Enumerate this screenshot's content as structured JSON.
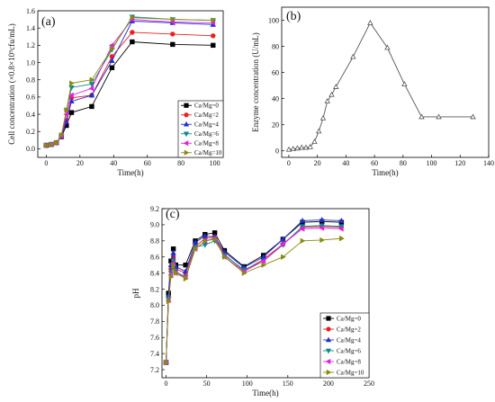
{
  "chart_data": [
    {
      "type": "line",
      "panel_label": "(a)",
      "xlabel": "Time(h)",
      "ylabel": "Cell concentration (×0.8×10⁹cfu/mL)",
      "xlim": [
        -5,
        105
      ],
      "ylim": [
        -0.1,
        1.6
      ],
      "xticks": [
        "0",
        "20",
        "40",
        "60",
        "80",
        "100"
      ],
      "yticks": [
        "0.0",
        "0.2",
        "0.4",
        "0.6",
        "0.8",
        "1.0",
        "1.2",
        "1.4",
        "1.6"
      ],
      "x": [
        0,
        3,
        6,
        9,
        12,
        15,
        27,
        39,
        51,
        75,
        99
      ],
      "legend_position": "bottom-right",
      "series": [
        {
          "name": "Ca/Mg=0",
          "color": "#000000",
          "marker": "square",
          "values": [
            0.04,
            0.05,
            0.07,
            0.14,
            0.27,
            0.42,
            0.49,
            0.94,
            1.24,
            1.21,
            1.2
          ]
        },
        {
          "name": "Ca/Mg=2",
          "color": "#e8211f",
          "marker": "circle",
          "values": [
            0.04,
            0.05,
            0.07,
            0.15,
            0.33,
            0.59,
            0.62,
            1.07,
            1.35,
            1.33,
            1.31
          ]
        },
        {
          "name": "Ca/Mg=4",
          "color": "#1f2fd1",
          "marker": "triangle-up",
          "values": [
            0.04,
            0.05,
            0.07,
            0.15,
            0.31,
            0.55,
            0.62,
            1.02,
            1.48,
            1.46,
            1.44
          ]
        },
        {
          "name": "Ca/Mg=6",
          "color": "#0b8a8a",
          "marker": "triangle-down",
          "values": [
            0.04,
            0.05,
            0.07,
            0.15,
            0.44,
            0.71,
            0.75,
            1.15,
            1.53,
            1.5,
            1.49
          ]
        },
        {
          "name": "Ca/Mg=8",
          "color": "#e020e0",
          "marker": "triangle-left",
          "values": [
            0.04,
            0.05,
            0.07,
            0.15,
            0.4,
            0.62,
            0.7,
            1.2,
            1.5,
            1.47,
            1.46
          ]
        },
        {
          "name": "Ca/Mg=10",
          "color": "#8a8a10",
          "marker": "triangle-right",
          "values": [
            0.04,
            0.05,
            0.07,
            0.16,
            0.45,
            0.76,
            0.8,
            1.16,
            1.52,
            1.5,
            1.49
          ]
        }
      ]
    },
    {
      "type": "line",
      "panel_label": "(b)",
      "xlabel": "Time(h)",
      "ylabel": "Enzyme concentration (U/mL)",
      "xlim": [
        -5,
        140
      ],
      "ylim": [
        -5,
        110
      ],
      "xticks": [
        "0",
        "20",
        "40",
        "60",
        "80",
        "100",
        "120",
        "140"
      ],
      "yticks": [
        "0",
        "20",
        "40",
        "60",
        "80",
        "100"
      ],
      "legend_position": "none",
      "series": [
        {
          "name": "",
          "color": "#555555",
          "marker": "triangle-up-open",
          "x": [
            0,
            3,
            6,
            9,
            12,
            15,
            18,
            21,
            24,
            27,
            30,
            33,
            45,
            57,
            69,
            81,
            93,
            105,
            129
          ],
          "values": [
            1,
            1.5,
            2,
            2.5,
            2.5,
            3,
            7,
            15,
            25,
            38,
            43,
            49,
            72,
            98,
            79,
            51,
            26,
            26,
            26
          ]
        }
      ]
    },
    {
      "type": "line",
      "panel_label": "(c)",
      "xlabel": "Time(h)",
      "ylabel": "pH",
      "xlim": [
        -5,
        250
      ],
      "ylim": [
        7.1,
        9.2
      ],
      "xticks": [
        "0",
        "50",
        "100",
        "150",
        "200",
        "250"
      ],
      "yticks": [
        "7.2",
        "7.4",
        "7.6",
        "7.8",
        "8.0",
        "8.2",
        "8.4",
        "8.6",
        "8.8",
        "9.0",
        "9.2"
      ],
      "x": [
        0,
        3,
        6,
        9,
        12,
        24,
        36,
        48,
        60,
        72,
        96,
        120,
        144,
        168,
        192,
        216
      ],
      "legend_position": "bottom-right",
      "series": [
        {
          "name": "Ca/Mg=0",
          "color": "#000000",
          "marker": "square",
          "values": [
            7.29,
            8.15,
            8.55,
            8.7,
            8.5,
            8.5,
            8.8,
            8.88,
            8.9,
            8.68,
            8.48,
            8.62,
            8.82,
            9.03,
            9.04,
            9.03
          ]
        },
        {
          "name": "Ca/Mg=2",
          "color": "#e8211f",
          "marker": "circle",
          "values": [
            7.29,
            8.1,
            8.45,
            8.6,
            8.45,
            8.4,
            8.73,
            8.83,
            8.85,
            8.63,
            8.43,
            8.57,
            8.76,
            8.97,
            8.98,
            8.97
          ]
        },
        {
          "name": "Ca/Mg=4",
          "color": "#1f2fd1",
          "marker": "triangle-up",
          "values": [
            7.29,
            8.12,
            8.5,
            8.65,
            8.48,
            8.42,
            8.78,
            8.86,
            8.85,
            8.66,
            8.47,
            8.6,
            8.82,
            9.05,
            9.06,
            9.05
          ]
        },
        {
          "name": "Ca/Mg=6",
          "color": "#0b8a8a",
          "marker": "triangle-down",
          "values": [
            7.29,
            8.08,
            8.4,
            8.55,
            8.42,
            8.35,
            8.72,
            8.75,
            8.8,
            8.62,
            8.44,
            8.55,
            8.75,
            8.98,
            8.99,
            8.98
          ]
        },
        {
          "name": "Ca/Mg=8",
          "color": "#e020e0",
          "marker": "triangle-left",
          "values": [
            7.29,
            8.06,
            8.38,
            8.52,
            8.4,
            8.35,
            8.7,
            8.8,
            8.83,
            8.6,
            8.42,
            8.55,
            8.76,
            8.95,
            8.96,
            8.95
          ]
        },
        {
          "name": "Ca/Mg=10",
          "color": "#8a8a10",
          "marker": "triangle-right",
          "values": [
            7.29,
            8.05,
            8.35,
            8.5,
            8.4,
            8.33,
            8.7,
            8.8,
            8.82,
            8.6,
            8.4,
            8.5,
            8.6,
            8.8,
            8.81,
            8.83
          ]
        }
      ]
    }
  ]
}
